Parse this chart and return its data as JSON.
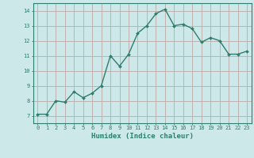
{
  "x": [
    0,
    1,
    2,
    3,
    4,
    5,
    6,
    7,
    8,
    9,
    10,
    11,
    12,
    13,
    14,
    15,
    16,
    17,
    18,
    19,
    20,
    21,
    22,
    23
  ],
  "y": [
    7.1,
    7.1,
    8.0,
    7.9,
    8.6,
    8.2,
    8.5,
    9.0,
    11.0,
    10.3,
    11.1,
    12.5,
    13.0,
    13.8,
    14.1,
    13.0,
    13.1,
    12.8,
    11.9,
    12.2,
    12.0,
    11.1,
    11.1,
    11.3
  ],
  "line_color": "#2e7d6e",
  "marker": "D",
  "marker_size": 2.0,
  "bg_color": "#cce8e8",
  "grid_color": "#c0a8a8",
  "xlabel": "Humidex (Indice chaleur)",
  "xlim": [
    -0.5,
    23.5
  ],
  "ylim": [
    6.5,
    14.5
  ],
  "yticks": [
    7,
    8,
    9,
    10,
    11,
    12,
    13,
    14
  ],
  "xticks": [
    0,
    1,
    2,
    3,
    4,
    5,
    6,
    7,
    8,
    9,
    10,
    11,
    12,
    13,
    14,
    15,
    16,
    17,
    18,
    19,
    20,
    21,
    22,
    23
  ],
  "tick_color": "#2e7d6e",
  "label_color": "#2e7d6e",
  "spine_color": "#2e7d6e",
  "tick_fontsize": 5.0,
  "xlabel_fontsize": 6.5,
  "linewidth": 1.0
}
